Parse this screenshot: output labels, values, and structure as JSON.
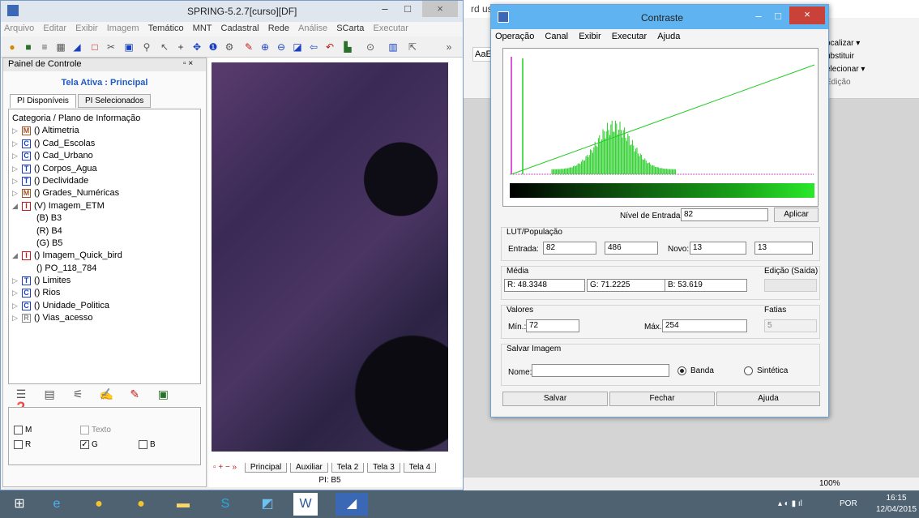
{
  "word": {
    "title_fragment": "rd uso",
    "ribbon_items": [
      "ocalizar ▾",
      "ubstituir",
      "elecionar ▾",
      "Edição"
    ],
    "style_fragment": "AaE",
    "status_zoom": "100%"
  },
  "spring": {
    "title": "SPRING-5.2.7[curso][DF]",
    "menu": [
      "Arquivo",
      "Editar",
      "Exibir",
      "Imagem",
      "Temático",
      "MNT",
      "Cadastral",
      "Rede",
      "Análise",
      "SCarta",
      "Executar"
    ],
    "panel": {
      "header": "Painel de Controle",
      "active": "Tela Ativa : Principal",
      "tabs": [
        "PI Disponíveis",
        "PI Selecionados"
      ],
      "tree_header": "Categoria / Plano de Informação",
      "tree": [
        {
          "arrow": "▷",
          "box": "M",
          "label": "() Altimetria",
          "color": "#a0522d"
        },
        {
          "arrow": "▷",
          "box": "C",
          "label": "() Cad_Escolas",
          "color": "#1a40c0"
        },
        {
          "arrow": "▷",
          "box": "C",
          "label": "() Cad_Urbano",
          "color": "#1a40c0"
        },
        {
          "arrow": "▷",
          "box": "T",
          "label": "() Corpos_Agua",
          "color": "#1a40c0"
        },
        {
          "arrow": "▷",
          "box": "T",
          "label": "() Declividade",
          "color": "#1a40c0"
        },
        {
          "arrow": "▷",
          "box": "M",
          "label": "() Grades_Numéricas",
          "color": "#a0522d"
        },
        {
          "arrow": "◢",
          "box": "I",
          "label": "(V) Imagem_ETM",
          "color": "#c01a1a"
        },
        {
          "arrow": "",
          "box": "",
          "label": "(B) B3",
          "color": ""
        },
        {
          "arrow": "",
          "box": "",
          "label": "(R) B4",
          "color": ""
        },
        {
          "arrow": "",
          "box": "",
          "label": "(G) B5",
          "color": ""
        },
        {
          "arrow": "◢",
          "box": "I",
          "label": "() Imagem_Quick_bird",
          "color": "#c01a1a"
        },
        {
          "arrow": "",
          "box": "",
          "label": "() PO_118_784",
          "color": ""
        },
        {
          "arrow": "▷",
          "box": "T",
          "label": "() Limites",
          "color": "#1a40c0"
        },
        {
          "arrow": "▷",
          "box": "C",
          "label": "() Rios",
          "color": "#1a40c0"
        },
        {
          "arrow": "▷",
          "box": "C",
          "label": "() Unidade_Politica",
          "color": "#1a40c0"
        },
        {
          "arrow": "▷",
          "box": "R",
          "label": "() Vias_acesso",
          "color": "#888888"
        }
      ],
      "channels": {
        "m": "M",
        "texto": "Texto",
        "r": "R",
        "g": "G",
        "b": "B"
      }
    },
    "image_tabs": [
      "Principal",
      "Auxiliar",
      "Tela 2",
      "Tela 3",
      "Tela 4"
    ],
    "image_pi": "PI: B5"
  },
  "contraste": {
    "title": "Contraste",
    "menu": [
      "Operação",
      "Canal",
      "Exibir",
      "Executar",
      "Ajuda"
    ],
    "nivel_label": "Nível de Entrada:",
    "nivel_value": "82",
    "aplicar": "Aplicar",
    "lut_title": "LUT/População",
    "entrada_label": "Entrada:",
    "entrada_value": "82",
    "populacao_value": "486",
    "novo_label": "Novo:",
    "novo_value": "13",
    "novo_value2": "13",
    "media_title": "Média",
    "r_label": "R:",
    "r_value": "48.3348",
    "g_label": "G:",
    "g_value": "71.2225",
    "b_label": "B:",
    "b_value": "53.619",
    "edicao_title": "Edição (Saída)",
    "valores_title": "Valores",
    "min_label": "Mín.:",
    "min_value": "72",
    "max_label": "Máx.:",
    "max_value": "254",
    "fatias_title": "Fatias",
    "fatias_value": "5",
    "salvar_title": "Salvar Imagem",
    "nome_label": "Nome:",
    "nome_value": "",
    "banda": "Banda",
    "sintetica": "Sintética",
    "btn_salvar": "Salvar",
    "btn_fechar": "Fechar",
    "btn_ajuda": "Ajuda"
  },
  "taskbar": {
    "lang": "POR",
    "time": "16:15",
    "date": "12/04/2015"
  },
  "colors": {
    "histogram": "#22cc22",
    "magenta_line": "#cc22cc",
    "title_active": "#5fb3f0"
  }
}
